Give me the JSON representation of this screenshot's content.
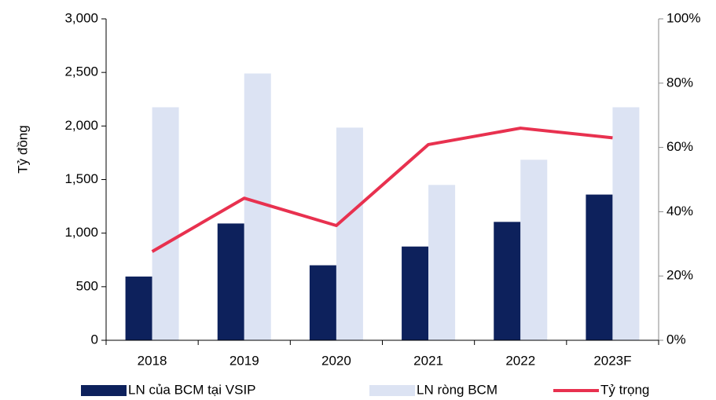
{
  "chart_data": {
    "type": "bar",
    "y_label": "Tỷ đồng",
    "categories": [
      "2018",
      "2019",
      "2020",
      "2021",
      "2022",
      "2023F"
    ],
    "series": [
      {
        "name": "LN của BCM tại VSIP",
        "color": "#0d215c",
        "values": [
          595,
          1090,
          700,
          875,
          1105,
          1360
        ]
      },
      {
        "name": "LN ròng BCM",
        "color": "#dce3f3",
        "values": [
          2175,
          2490,
          1985,
          1450,
          1685,
          2175
        ]
      },
      {
        "name": "Tỷ trọng",
        "color": "#e8314f",
        "type": "line",
        "axis": "y2",
        "values": [
          27.6,
          44.2,
          35.7,
          60.9,
          66,
          63
        ]
      }
    ],
    "ylim": [
      0,
      3000
    ],
    "yticks": [
      0,
      500,
      {
        "value": 1000,
        "label": "1,000"
      },
      {
        "value": 1500,
        "label": "1,500"
      },
      {
        "value": 2000,
        "label": "2,000"
      },
      {
        "value": 2500,
        "label": "2,500"
      },
      {
        "value": 3000,
        "label": "3,000"
      }
    ],
    "y2lim": [
      0,
      100
    ],
    "y2ticks": [
      {
        "value": 0,
        "label": "0%"
      },
      {
        "value": 20,
        "label": "20%"
      },
      {
        "value": 40,
        "label": "40%"
      },
      {
        "value": 60,
        "label": "60%"
      },
      {
        "value": 80,
        "label": "80%"
      },
      {
        "value": 100,
        "label": "100%"
      }
    ],
    "legend": "bottom"
  }
}
